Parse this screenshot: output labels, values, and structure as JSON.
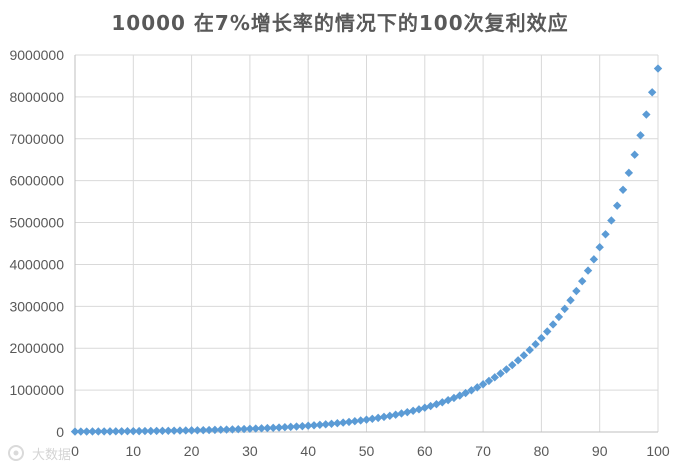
{
  "chart_data": {
    "type": "scatter",
    "title": "10000 在7%增长率的情况下的100次复利效应",
    "xlabel": "",
    "ylabel": "",
    "xlim": [
      0,
      100
    ],
    "ylim": [
      0,
      9000000
    ],
    "x_ticks": [
      "0",
      "10",
      "20",
      "30",
      "40",
      "50",
      "60",
      "70",
      "80",
      "90",
      "100"
    ],
    "y_ticks": [
      "0",
      "1000000",
      "2000000",
      "3000000",
      "4000000",
      "5000000",
      "6000000",
      "7000000",
      "8000000",
      "9000000"
    ],
    "grid": "vertical and horizontal",
    "legend": "none",
    "marker": "diamond",
    "color": "#5b9bd5",
    "series": [
      {
        "x": [
          0,
          1,
          2,
          3,
          4,
          5,
          6,
          7,
          8,
          9,
          10,
          11,
          12,
          13,
          14,
          15,
          16,
          17,
          18,
          19,
          20,
          21,
          22,
          23,
          24,
          25,
          26,
          27,
          28,
          29,
          30,
          31,
          32,
          33,
          34,
          35,
          36,
          37,
          38,
          39,
          40,
          41,
          42,
          43,
          44,
          45,
          46,
          47,
          48,
          49,
          50,
          51,
          52,
          53,
          54,
          55,
          56,
          57,
          58,
          59,
          60,
          61,
          62,
          63,
          64,
          65,
          66,
          67,
          68,
          69,
          70,
          71,
          72,
          73,
          74,
          75,
          76,
          77,
          78,
          79,
          80,
          81,
          82,
          83,
          84,
          85,
          86,
          87,
          88,
          89,
          90,
          91,
          92,
          93,
          94,
          95,
          96,
          97,
          98,
          99,
          100
        ],
        "y": [
          10000,
          10700,
          11449,
          12250,
          13108,
          14026,
          15007,
          16058,
          17182,
          18385,
          19672,
          21049,
          22522,
          24098,
          25785,
          27590,
          29522,
          31588,
          33799,
          36165,
          38697,
          41406,
          44304,
          47405,
          50724,
          54274,
          58074,
          62139,
          66488,
          71143,
          76123,
          81451,
          87153,
          93253,
          99781,
          106766,
          114239,
          122236,
          130793,
          139948,
          149745,
          160227,
          171443,
          183444,
          196285,
          210025,
          224726,
          240457,
          257289,
          275299,
          294570,
          315190,
          337253,
          360861,
          386122,
          413150,
          442071,
          473015,
          506126,
          541555,
          579464,
          620026,
          663428,
          709868,
          759559,
          812729,
          869620,
          930493,
          995628,
          1065322,
          1139895,
          1219688,
          1305066,
          1396421,
          1494170,
          1598762,
          1710675,
          1830422,
          1958552,
          2095650,
          2242345,
          2399309,
          2567261,
          2746969,
          2939257,
          3145005,
          3365155,
          3600716,
          3852766,
          4122460,
          4411032,
          4719804,
          5050190,
          5403703,
          5781962,
          6186699,
          6619768,
          7083151,
          7578972,
          8109500,
          8677165
        ]
      }
    ]
  },
  "watermark": {
    "text": "大数据",
    "icon": "watermark-logo-icon"
  }
}
